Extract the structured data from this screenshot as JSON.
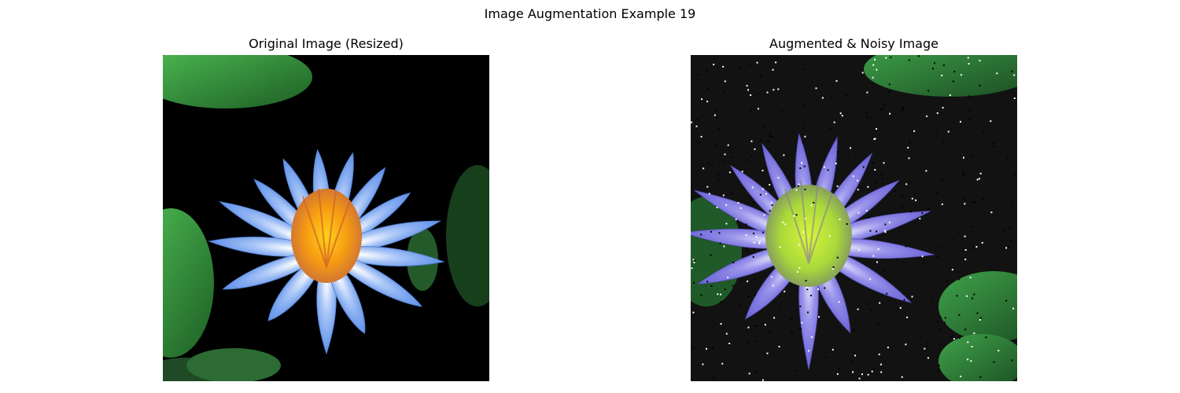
{
  "figure": {
    "title": "Image Augmentation Example 19"
  },
  "panels": [
    {
      "title": "Original Image (Resized)",
      "image": "water-lily-photo",
      "colors": {
        "background": "#000000",
        "leaf": "#2f8f3a",
        "petal": "#8fb4f2",
        "center": "#f5a81a"
      }
    },
    {
      "title": "Augmented & Noisy Image",
      "image": "water-lily-photo-augmented",
      "noise": "salt-and-pepper",
      "colors": {
        "background": "#111111",
        "leaf": "#2f8f3a",
        "petal": "#8a86e6",
        "center": "#b9e23a"
      }
    }
  ]
}
